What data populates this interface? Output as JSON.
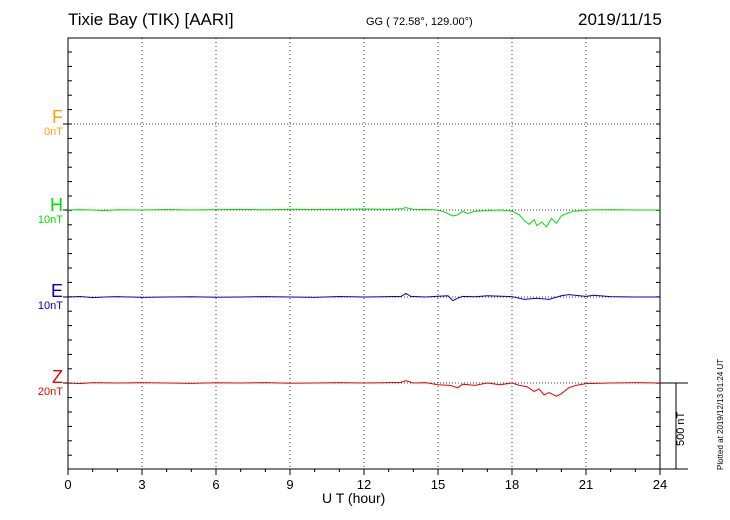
{
  "header": {
    "station": "Tixie Bay (TIK)  [AARI]",
    "coords": "GG ( 72.58°, 129.00°)",
    "date": "2019/11/15"
  },
  "components": [
    {
      "name": "F",
      "scale": "0nT",
      "color": "#ffa500"
    },
    {
      "name": "H",
      "scale": "10nT",
      "color": "#00dd00"
    },
    {
      "name": "E",
      "scale": "10nT",
      "color": "#0000cc"
    },
    {
      "name": "Z",
      "scale": "20nT",
      "color": "#ee0000"
    }
  ],
  "scale_bar_label": "500 nT",
  "plotted_note": "Plotted at 2019/12/13 01:24 UT",
  "chart_data": {
    "type": "line",
    "xlabel": "U T (hour)",
    "xlim": [
      0,
      24
    ],
    "xticks": [
      0,
      3,
      6,
      9,
      12,
      15,
      18,
      21,
      24
    ],
    "grid": true,
    "series": [
      {
        "name": "F",
        "color": "#ffa500",
        "x": [],
        "values": []
      },
      {
        "name": "H",
        "color": "#00dd00",
        "x": [
          0,
          0.5,
          1,
          1.5,
          2,
          3,
          4,
          5,
          6,
          7,
          8,
          9,
          10,
          11,
          12,
          13,
          13.5,
          13.7,
          14,
          14.5,
          15,
          15.3,
          15.6,
          15.8,
          16,
          16.2,
          16.5,
          17,
          17.5,
          18,
          18.3,
          18.5,
          18.7,
          18.9,
          19,
          19.2,
          19.4,
          19.6,
          19.8,
          20,
          20.2,
          20.5,
          21,
          22,
          23,
          24
        ],
        "values": [
          0,
          0.3,
          0,
          -0.5,
          0.2,
          0,
          0.4,
          0,
          0.3,
          0.5,
          0.2,
          0.6,
          0.4,
          0.6,
          0.8,
          0.5,
          1,
          2,
          0.5,
          0.4,
          0,
          -2,
          -5,
          -4,
          -1,
          -3,
          -1,
          -0.5,
          0,
          -1,
          -4,
          -9,
          -12,
          -8,
          -13,
          -10,
          -14,
          -7,
          -11,
          -5,
          -3,
          -1,
          0,
          0.3,
          0,
          0
        ]
      },
      {
        "name": "E",
        "color": "#0000cc",
        "x": [
          0,
          0.5,
          1,
          1.5,
          2,
          3,
          4,
          5,
          6,
          7,
          8,
          9,
          10,
          11,
          12,
          13,
          13.5,
          13.7,
          13.9,
          14.5,
          15,
          15.4,
          15.6,
          15.8,
          16,
          16.5,
          17,
          18,
          18.5,
          19,
          19.5,
          20,
          20.3,
          21,
          21.3,
          22,
          23,
          24
        ],
        "values": [
          0,
          0.4,
          -0.5,
          0,
          0.3,
          -0.3,
          0,
          0.2,
          -0.2,
          0,
          0.3,
          0,
          -0.3,
          0.4,
          0,
          0.3,
          0.5,
          3,
          0.5,
          0,
          0.6,
          1,
          -3,
          -1,
          0.5,
          0.2,
          1,
          0.3,
          -2,
          -1,
          -2,
          1,
          2,
          0.5,
          1.5,
          0.3,
          0,
          0
        ]
      },
      {
        "name": "Z",
        "color": "#ee0000",
        "x": [
          0,
          0.5,
          1,
          2,
          3,
          4,
          5,
          6,
          7,
          8,
          9,
          10,
          11,
          12,
          13,
          13.5,
          13.7,
          14,
          14.5,
          15,
          15.5,
          15.8,
          16,
          16.5,
          17,
          17.5,
          18,
          18.3,
          18.6,
          18.9,
          19.1,
          19.3,
          19.5,
          19.8,
          20,
          20.3,
          20.6,
          21,
          22,
          23,
          24
        ],
        "values": [
          0,
          -0.5,
          0.3,
          0,
          0.3,
          0,
          -0.3,
          0.2,
          0,
          0.3,
          -0.2,
          0,
          0.3,
          0,
          0.3,
          0.5,
          2,
          0,
          0.3,
          -1.5,
          -2,
          -4,
          -1,
          -2,
          0,
          -1.5,
          0,
          -2,
          -3,
          -7,
          -5,
          -10,
          -8,
          -11,
          -9,
          -4,
          -2,
          -0.5,
          0,
          0.3,
          0
        ]
      }
    ]
  }
}
